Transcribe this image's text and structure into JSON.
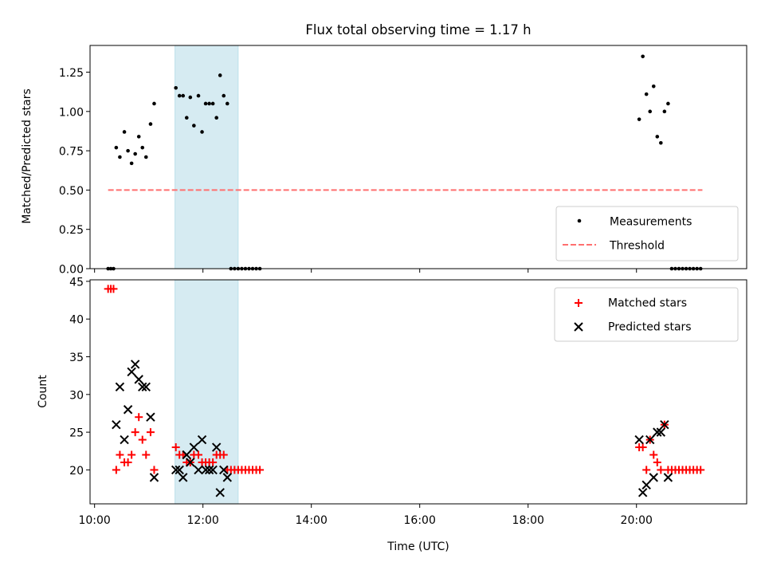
{
  "chart_data": {
    "title": "Flux total observing time = 1.17 h",
    "xlabel": "Time (UTC)",
    "x_ticks": [
      "10:00",
      "12:00",
      "14:00",
      "16:00",
      "18:00",
      "20:00"
    ],
    "x_range": [
      "09:55",
      "22:02"
    ],
    "shaded_span": [
      "11:29",
      "12:39"
    ],
    "colors": {
      "shade": "#add8e6",
      "threshold": "#ff6f6f",
      "matched": "#ff0000",
      "predicted": "#000000",
      "measurements": "#000000"
    },
    "panels": [
      {
        "type": "scatter",
        "ylabel": "Matched/Predicted stars",
        "ylim": [
          0,
          1.42
        ],
        "y_ticks": [
          "0.00",
          "0.25",
          "0.50",
          "0.75",
          "1.00",
          "1.25"
        ],
        "legend_position": "lower-right",
        "legend": {
          "measurements": "Measurements",
          "threshold": "Threshold"
        },
        "threshold": {
          "value": 0.5,
          "x_range": [
            "10:15",
            "21:13"
          ]
        },
        "series": [
          {
            "name": "Measurements",
            "points": [
              [
                "10:15",
                0
              ],
              [
                "10:18",
                0
              ],
              [
                "10:21",
                0
              ],
              [
                "10:24",
                0.77
              ],
              [
                "10:28",
                0.71
              ],
              [
                "10:33",
                0.87
              ],
              [
                "10:37",
                0.75
              ],
              [
                "10:41",
                0.67
              ],
              [
                "10:45",
                0.73
              ],
              [
                "10:49",
                0.84
              ],
              [
                "10:53",
                0.77
              ],
              [
                "10:57",
                0.71
              ],
              [
                "11:02",
                0.92
              ],
              [
                "11:06",
                1.05
              ],
              [
                "11:30",
                1.15
              ],
              [
                "11:34",
                1.1
              ],
              [
                "11:38",
                1.1
              ],
              [
                "11:42",
                0.96
              ],
              [
                "11:46",
                1.09
              ],
              [
                "11:50",
                0.91
              ],
              [
                "11:55",
                1.1
              ],
              [
                "11:59",
                0.87
              ],
              [
                "12:03",
                1.05
              ],
              [
                "12:07",
                1.05
              ],
              [
                "12:11",
                1.05
              ],
              [
                "12:15",
                0.96
              ],
              [
                "12:19",
                1.23
              ],
              [
                "12:23",
                1.1
              ],
              [
                "12:27",
                1.05
              ],
              [
                "12:31",
                0
              ],
              [
                "12:35",
                0
              ],
              [
                "12:39",
                0
              ],
              [
                "12:43",
                0
              ],
              [
                "12:47",
                0
              ],
              [
                "12:51",
                0
              ],
              [
                "12:55",
                0
              ],
              [
                "12:59",
                0
              ],
              [
                "13:03",
                0
              ],
              [
                "20:03",
                0.95
              ],
              [
                "20:07",
                1.35
              ],
              [
                "20:11",
                1.11
              ],
              [
                "20:15",
                1.0
              ],
              [
                "20:19",
                1.16
              ],
              [
                "20:23",
                0.84
              ],
              [
                "20:27",
                0.8
              ],
              [
                "20:31",
                1.0
              ],
              [
                "20:35",
                1.05
              ],
              [
                "20:39",
                0
              ],
              [
                "20:43",
                0
              ],
              [
                "20:47",
                0
              ],
              [
                "20:51",
                0
              ],
              [
                "20:55",
                0
              ],
              [
                "20:59",
                0
              ],
              [
                "21:03",
                0
              ],
              [
                "21:07",
                0
              ],
              [
                "21:11",
                0
              ]
            ]
          }
        ]
      },
      {
        "type": "scatter",
        "ylabel": "Count",
        "ylim": [
          15.5,
          45.2
        ],
        "y_ticks": [
          "20",
          "25",
          "30",
          "35",
          "40",
          "45"
        ],
        "legend_position": "upper-right",
        "series": [
          {
            "name": "Matched stars",
            "points": [
              [
                "10:15",
                44
              ],
              [
                "10:18",
                44
              ],
              [
                "10:21",
                44
              ],
              [
                "10:24",
                20
              ],
              [
                "10:28",
                22
              ],
              [
                "10:33",
                21
              ],
              [
                "10:37",
                21
              ],
              [
                "10:41",
                22
              ],
              [
                "10:45",
                25
              ],
              [
                "10:49",
                27
              ],
              [
                "10:53",
                24
              ],
              [
                "10:57",
                22
              ],
              [
                "11:02",
                25
              ],
              [
                "11:06",
                20
              ],
              [
                "11:30",
                23
              ],
              [
                "11:34",
                22
              ],
              [
                "11:38",
                22
              ],
              [
                "11:42",
                21
              ],
              [
                "11:46",
                21
              ],
              [
                "11:50",
                22
              ],
              [
                "11:55",
                22
              ],
              [
                "11:59",
                21
              ],
              [
                "12:03",
                21
              ],
              [
                "12:07",
                21
              ],
              [
                "12:11",
                21
              ],
              [
                "12:15",
                22
              ],
              [
                "12:19",
                22
              ],
              [
                "12:23",
                22
              ],
              [
                "12:27",
                20
              ],
              [
                "12:31",
                20
              ],
              [
                "12:35",
                20
              ],
              [
                "12:39",
                20
              ],
              [
                "12:43",
                20
              ],
              [
                "12:47",
                20
              ],
              [
                "12:51",
                20
              ],
              [
                "12:55",
                20
              ],
              [
                "12:59",
                20
              ],
              [
                "13:03",
                20
              ],
              [
                "20:03",
                23
              ],
              [
                "20:07",
                23
              ],
              [
                "20:11",
                20
              ],
              [
                "20:15",
                24
              ],
              [
                "20:19",
                22
              ],
              [
                "20:23",
                21
              ],
              [
                "20:27",
                20
              ],
              [
                "20:31",
                26
              ],
              [
                "20:35",
                20
              ],
              [
                "20:39",
                20
              ],
              [
                "20:43",
                20
              ],
              [
                "20:47",
                20
              ],
              [
                "20:51",
                20
              ],
              [
                "20:55",
                20
              ],
              [
                "20:59",
                20
              ],
              [
                "21:03",
                20
              ],
              [
                "21:07",
                20
              ],
              [
                "21:11",
                20
              ]
            ]
          },
          {
            "name": "Predicted stars",
            "points": [
              [
                "10:24",
                26
              ],
              [
                "10:28",
                31
              ],
              [
                "10:33",
                24
              ],
              [
                "10:37",
                28
              ],
              [
                "10:41",
                33
              ],
              [
                "10:45",
                34
              ],
              [
                "10:49",
                32
              ],
              [
                "10:53",
                31
              ],
              [
                "10:57",
                31
              ],
              [
                "11:02",
                27
              ],
              [
                "11:06",
                19
              ],
              [
                "11:30",
                20
              ],
              [
                "11:34",
                20
              ],
              [
                "11:38",
                19
              ],
              [
                "11:42",
                22
              ],
              [
                "11:46",
                21
              ],
              [
                "11:50",
                23
              ],
              [
                "11:55",
                20
              ],
              [
                "11:59",
                24
              ],
              [
                "12:03",
                20
              ],
              [
                "12:07",
                20
              ],
              [
                "12:11",
                20
              ],
              [
                "12:15",
                23
              ],
              [
                "12:19",
                17
              ],
              [
                "12:23",
                20
              ],
              [
                "12:27",
                19
              ],
              [
                "20:03",
                24
              ],
              [
                "20:07",
                17
              ],
              [
                "20:11",
                18
              ],
              [
                "20:15",
                24
              ],
              [
                "20:19",
                19
              ],
              [
                "20:23",
                25
              ],
              [
                "20:27",
                25
              ],
              [
                "20:31",
                26
              ],
              [
                "20:35",
                19
              ]
            ]
          }
        ]
      }
    ]
  }
}
